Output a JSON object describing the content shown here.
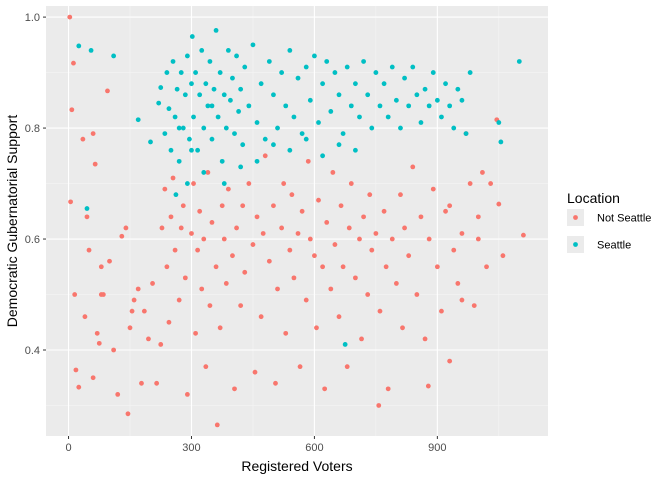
{
  "chart_data": {
    "type": "scatter",
    "xlabel": "Registered Voters",
    "ylabel": "Democratic Gubernatorial Support",
    "xlim": [
      -55,
      1170
    ],
    "ylim": [
      0.245,
      1.02
    ],
    "x_ticks": [
      0,
      300,
      600,
      900
    ],
    "y_ticks": [
      0.4,
      0.6,
      0.8,
      1.0
    ],
    "x_tick_labels": [
      "0",
      "300",
      "600",
      "900"
    ],
    "y_tick_labels": [
      "0.4",
      "0.6",
      "0.8",
      "1.0"
    ],
    "grid": true,
    "legend": {
      "title": "Location",
      "placement": "right"
    },
    "series": [
      {
        "name": "Not Seattle",
        "color": "#F8766D",
        "points": [
          [
            3,
            1.0
          ],
          [
            12,
            0.917
          ],
          [
            8,
            0.833
          ],
          [
            5,
            0.667
          ],
          [
            15,
            0.5
          ],
          [
            18,
            0.364
          ],
          [
            25,
            0.333
          ],
          [
            35,
            0.78
          ],
          [
            45,
            0.64
          ],
          [
            50,
            0.58
          ],
          [
            60,
            0.79
          ],
          [
            65,
            0.735
          ],
          [
            70,
            0.43
          ],
          [
            75,
            0.412
          ],
          [
            80,
            0.5
          ],
          [
            85,
            0.5
          ],
          [
            95,
            0.867
          ],
          [
            100,
            0.56
          ],
          [
            110,
            0.4
          ],
          [
            120,
            0.32
          ],
          [
            130,
            0.605
          ],
          [
            140,
            0.62
          ],
          [
            145,
            0.285
          ],
          [
            150,
            0.44
          ],
          [
            155,
            0.47
          ],
          [
            160,
            0.49
          ],
          [
            170,
            0.51
          ],
          [
            60,
            0.35
          ],
          [
            80,
            0.55
          ],
          [
            40,
            0.46
          ],
          [
            178,
            0.34
          ],
          [
            185,
            0.47
          ],
          [
            195,
            0.42
          ],
          [
            205,
            0.52
          ],
          [
            215,
            0.34
          ],
          [
            225,
            0.41
          ],
          [
            228,
            0.62
          ],
          [
            235,
            0.69
          ],
          [
            240,
            0.55
          ],
          [
            245,
            0.45
          ],
          [
            250,
            0.64
          ],
          [
            255,
            0.71
          ],
          [
            260,
            0.58
          ],
          [
            270,
            0.49
          ],
          [
            275,
            0.62
          ],
          [
            280,
            0.66
          ],
          [
            285,
            0.53
          ],
          [
            290,
            0.32
          ],
          [
            300,
            0.61
          ],
          [
            305,
            0.7
          ],
          [
            310,
            0.43
          ],
          [
            315,
            0.58
          ],
          [
            320,
            0.65
          ],
          [
            325,
            0.51
          ],
          [
            330,
            0.6
          ],
          [
            335,
            0.37
          ],
          [
            340,
            0.72
          ],
          [
            345,
            0.48
          ],
          [
            350,
            0.63
          ],
          [
            360,
            0.55
          ],
          [
            363,
            0.265
          ],
          [
            370,
            0.44
          ],
          [
            375,
            0.66
          ],
          [
            380,
            0.6
          ],
          [
            385,
            0.52
          ],
          [
            390,
            0.69
          ],
          [
            400,
            0.57
          ],
          [
            405,
            0.33
          ],
          [
            410,
            0.62
          ],
          [
            420,
            0.48
          ],
          [
            425,
            0.66
          ],
          [
            430,
            0.54
          ],
          [
            440,
            0.7
          ],
          [
            450,
            0.59
          ],
          [
            455,
            0.36
          ],
          [
            460,
            0.64
          ],
          [
            470,
            0.46
          ],
          [
            475,
            0.61
          ],
          [
            480,
            0.75
          ],
          [
            490,
            0.56
          ],
          [
            500,
            0.66
          ],
          [
            505,
            0.34
          ],
          [
            510,
            0.51
          ],
          [
            520,
            0.62
          ],
          [
            525,
            0.7
          ],
          [
            530,
            0.43
          ],
          [
            540,
            0.58
          ],
          [
            545,
            0.68
          ],
          [
            550,
            0.53
          ],
          [
            560,
            0.61
          ],
          [
            565,
            0.37
          ],
          [
            570,
            0.65
          ],
          [
            580,
            0.49
          ],
          [
            585,
            0.74
          ],
          [
            590,
            0.6
          ],
          [
            600,
            0.57
          ],
          [
            605,
            0.44
          ],
          [
            610,
            0.67
          ],
          [
            620,
            0.55
          ],
          [
            625,
            0.33
          ],
          [
            630,
            0.63
          ],
          [
            640,
            0.51
          ],
          [
            645,
            0.72
          ],
          [
            650,
            0.59
          ],
          [
            660,
            0.46
          ],
          [
            665,
            0.66
          ],
          [
            670,
            0.55
          ],
          [
            680,
            0.37
          ],
          [
            685,
            0.62
          ],
          [
            690,
            0.7
          ],
          [
            700,
            0.53
          ],
          [
            710,
            0.6
          ],
          [
            715,
            0.42
          ],
          [
            720,
            0.64
          ],
          [
            730,
            0.5
          ],
          [
            735,
            0.68
          ],
          [
            740,
            0.58
          ],
          [
            750,
            0.61
          ],
          [
            757,
            0.3
          ],
          [
            760,
            0.47
          ],
          [
            770,
            0.65
          ],
          [
            775,
            0.55
          ],
          [
            780,
            0.33
          ],
          [
            790,
            0.6
          ],
          [
            800,
            0.52
          ],
          [
            810,
            0.68
          ],
          [
            815,
            0.44
          ],
          [
            820,
            0.62
          ],
          [
            830,
            0.57
          ],
          [
            840,
            0.73
          ],
          [
            850,
            0.5
          ],
          [
            860,
            0.64
          ],
          [
            870,
            0.42
          ],
          [
            878,
            0.335
          ],
          [
            880,
            0.6
          ],
          [
            890,
            0.69
          ],
          [
            900,
            0.55
          ],
          [
            910,
            0.47
          ],
          [
            920,
            0.65
          ],
          [
            930,
            0.38
          ],
          [
            940,
            0.58
          ],
          [
            950,
            0.52
          ],
          [
            960,
            0.61
          ],
          [
            970,
            0.79
          ],
          [
            980,
            0.7
          ],
          [
            990,
            0.48
          ],
          [
            1000,
            0.6
          ],
          [
            1010,
            0.72
          ],
          [
            1020,
            0.55
          ],
          [
            1045,
            0.815
          ],
          [
            1050,
            0.663
          ],
          [
            1110,
            0.607
          ],
          [
            1060,
            0.57
          ],
          [
            1000,
            0.64
          ],
          [
            960,
            0.49
          ],
          [
            930,
            0.66
          ],
          [
            1030,
            0.7
          ]
        ]
      },
      {
        "name": "Seattle",
        "color": "#00BFC4",
        "points": [
          [
            25,
            0.948
          ],
          [
            55,
            0.94
          ],
          [
            110,
            0.93
          ],
          [
            45,
            0.655
          ],
          [
            170,
            0.815
          ],
          [
            200,
            0.775
          ],
          [
            220,
            0.845
          ],
          [
            225,
            0.873
          ],
          [
            235,
            0.79
          ],
          [
            240,
            0.9
          ],
          [
            245,
            0.835
          ],
          [
            250,
            0.76
          ],
          [
            255,
            0.92
          ],
          [
            260,
            0.82
          ],
          [
            265,
            0.87
          ],
          [
            270,
            0.74
          ],
          [
            275,
            0.9
          ],
          [
            280,
            0.8
          ],
          [
            285,
            0.86
          ],
          [
            290,
            0.93
          ],
          [
            295,
            0.78
          ],
          [
            300,
            0.88
          ],
          [
            302,
            0.965
          ],
          [
            305,
            0.82
          ],
          [
            310,
            0.9
          ],
          [
            315,
            0.76
          ],
          [
            320,
            0.86
          ],
          [
            325,
            0.94
          ],
          [
            330,
            0.8
          ],
          [
            335,
            0.88
          ],
          [
            340,
            0.84
          ],
          [
            345,
            0.92
          ],
          [
            350,
            0.78
          ],
          [
            355,
            0.87
          ],
          [
            360,
            0.976
          ],
          [
            365,
            0.82
          ],
          [
            370,
            0.9
          ],
          [
            375,
            0.74
          ],
          [
            380,
            0.86
          ],
          [
            385,
            0.8
          ],
          [
            390,
            0.94
          ],
          [
            395,
            0.85
          ],
          [
            400,
            0.89
          ],
          [
            405,
            0.79
          ],
          [
            410,
            0.93
          ],
          [
            415,
            0.83
          ],
          [
            420,
            0.87
          ],
          [
            425,
            0.77
          ],
          [
            430,
            0.91
          ],
          [
            440,
            0.84
          ],
          [
            450,
            0.95
          ],
          [
            460,
            0.81
          ],
          [
            470,
            0.88
          ],
          [
            480,
            0.78
          ],
          [
            490,
            0.92
          ],
          [
            500,
            0.86
          ],
          [
            510,
            0.8
          ],
          [
            520,
            0.9
          ],
          [
            530,
            0.84
          ],
          [
            540,
            0.94
          ],
          [
            550,
            0.82
          ],
          [
            560,
            0.89
          ],
          [
            570,
            0.79
          ],
          [
            580,
            0.91
          ],
          [
            590,
            0.85
          ],
          [
            600,
            0.93
          ],
          [
            610,
            0.81
          ],
          [
            620,
            0.88
          ],
          [
            630,
            0.92
          ],
          [
            640,
            0.83
          ],
          [
            650,
            0.9
          ],
          [
            660,
            0.86
          ],
          [
            670,
            0.79
          ],
          [
            675,
            0.41
          ],
          [
            680,
            0.91
          ],
          [
            690,
            0.84
          ],
          [
            700,
            0.88
          ],
          [
            710,
            0.82
          ],
          [
            720,
            0.92
          ],
          [
            730,
            0.86
          ],
          [
            740,
            0.8
          ],
          [
            750,
            0.9
          ],
          [
            760,
            0.84
          ],
          [
            770,
            0.88
          ],
          [
            780,
            0.82
          ],
          [
            790,
            0.91
          ],
          [
            800,
            0.85
          ],
          [
            810,
            0.8
          ],
          [
            820,
            0.89
          ],
          [
            830,
            0.84
          ],
          [
            840,
            0.91
          ],
          [
            850,
            0.86
          ],
          [
            860,
            0.81
          ],
          [
            870,
            0.87
          ],
          [
            880,
            0.84
          ],
          [
            890,
            0.9
          ],
          [
            900,
            0.85
          ],
          [
            910,
            0.82
          ],
          [
            920,
            0.88
          ],
          [
            930,
            0.84
          ],
          [
            940,
            0.8
          ],
          [
            950,
            0.87
          ],
          [
            960,
            0.85
          ],
          [
            970,
            0.79
          ],
          [
            980,
            0.9
          ],
          [
            1050,
            0.81
          ],
          [
            1055,
            0.775
          ],
          [
            1100,
            0.92
          ],
          [
            300,
            0.76
          ],
          [
            330,
            0.72
          ],
          [
            350,
            0.84
          ],
          [
            380,
            0.7
          ],
          [
            420,
            0.73
          ],
          [
            460,
            0.74
          ],
          [
            500,
            0.77
          ],
          [
            540,
            0.76
          ],
          [
            580,
            0.78
          ],
          [
            620,
            0.75
          ],
          [
            660,
            0.77
          ],
          [
            700,
            0.76
          ],
          [
            262,
            0.68
          ],
          [
            290,
            0.7
          ],
          [
            270,
            0.8
          ]
        ]
      }
    ]
  }
}
